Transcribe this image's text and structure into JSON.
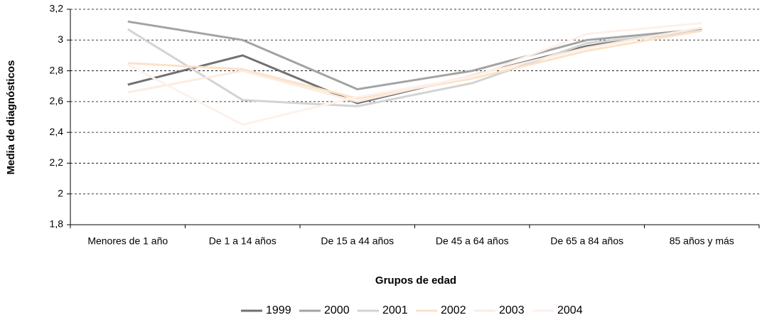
{
  "chart_data": {
    "type": "line",
    "x_label": "Grupos de edad",
    "y_label": "Media de diagnósticos",
    "categories": [
      "Menores de 1 año",
      "De 1 a 14 años",
      "De 15 a 44 años",
      "De 45 a 64 años",
      "De 65 a 84 años",
      "85 años y más"
    ],
    "series": [
      {
        "name": "1999",
        "color": "#707070",
        "values": [
          2.71,
          2.9,
          2.59,
          2.77,
          2.96,
          3.07
        ]
      },
      {
        "name": "2000",
        "color": "#a3a3a3",
        "values": [
          3.12,
          3.0,
          2.68,
          2.8,
          3.0,
          3.07
        ]
      },
      {
        "name": "2001",
        "color": "#d3d3d3",
        "values": [
          3.07,
          2.61,
          2.57,
          2.72,
          2.98,
          3.06
        ]
      },
      {
        "name": "2002",
        "color": "#fbe2c8",
        "values": [
          2.85,
          2.81,
          2.62,
          2.75,
          2.93,
          3.06
        ]
      },
      {
        "name": "2003",
        "color": "#fcece0",
        "values": [
          2.66,
          2.8,
          2.6,
          2.77,
          2.95,
          3.08
        ]
      },
      {
        "name": "2004",
        "color": "#fdf1ea",
        "values": [
          2.84,
          2.45,
          2.63,
          2.76,
          3.04,
          3.11
        ]
      }
    ],
    "ylim": [
      1.8,
      3.2
    ],
    "yticks": [
      {
        "value": 1.8,
        "label": "1,8"
      },
      2,
      {
        "value": 2.2,
        "label": "2,2"
      },
      {
        "value": 2.4,
        "label": "2,4"
      },
      {
        "value": 2.6,
        "label": "2,6"
      },
      {
        "value": 2.8,
        "label": "2,8"
      },
      3,
      {
        "value": 3.2,
        "label": "3,2"
      }
    ],
    "grid": true,
    "legend": "bottom"
  }
}
